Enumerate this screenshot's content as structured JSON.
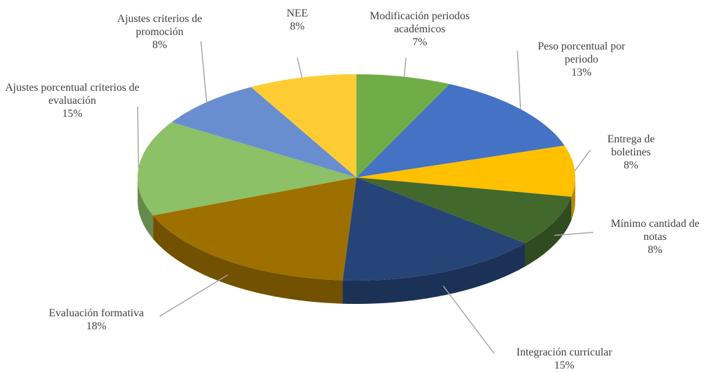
{
  "chart_data": {
    "type": "pie3d",
    "categories": [
      "Modificación periodos académicos",
      "Peso porcentual por periodo",
      "Entrega de boletines",
      "Mínimo cantidad de notas",
      "Integración curricular",
      "Evaluación formativa",
      "Ajustes porcentual criterios de evaluación",
      "Ajustes criterios de promoción",
      "NEE"
    ],
    "values": [
      7,
      13,
      8,
      8,
      15,
      18,
      15,
      8,
      8
    ],
    "value_labels": [
      "7%",
      "13%",
      "8%",
      "8%",
      "15%",
      "18%",
      "15%",
      "8%",
      "8%"
    ],
    "colors": [
      "#70ad47",
      "#4472c4",
      "#ffc000",
      "#43682b",
      "#264478",
      "#9e7000",
      "#8cc168",
      "#698ed0",
      "#ffcd33"
    ]
  }
}
